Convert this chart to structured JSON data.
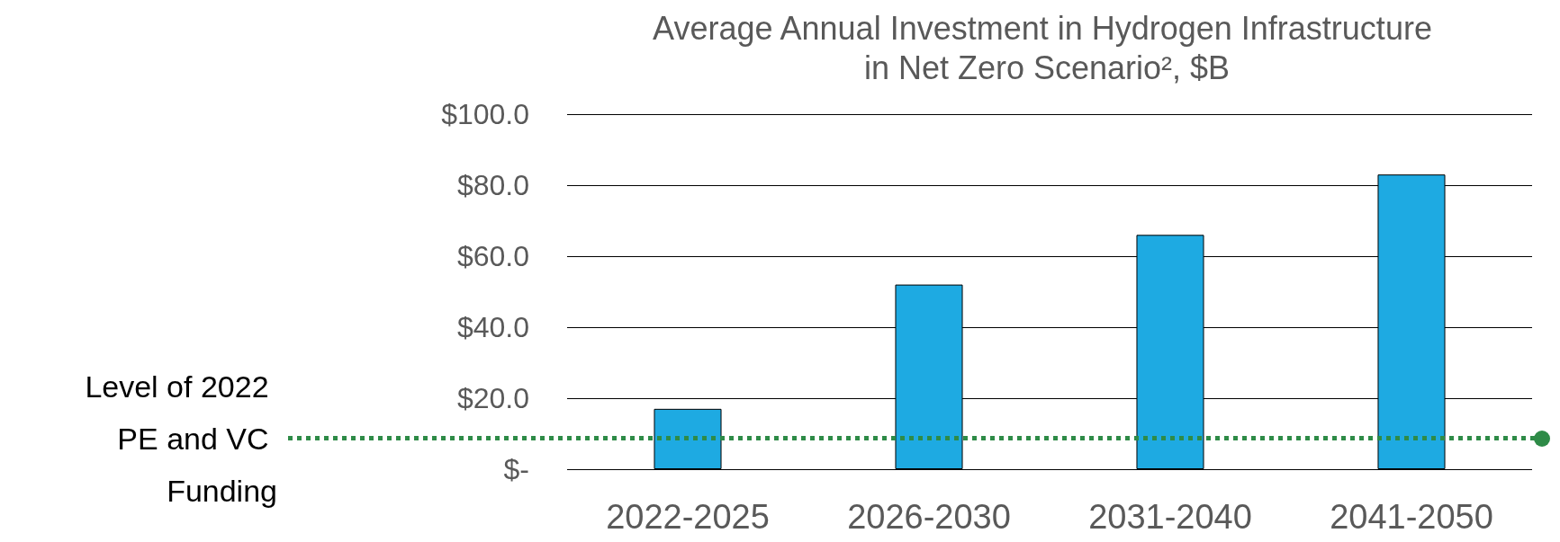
{
  "chart_data": {
    "type": "bar",
    "title": "Average Annual Investment in Hydrogen Infrastructure in Net Zero Scenario², $B",
    "categories": [
      "2022-2025",
      "2026-2030",
      "2031-2040",
      "2041-2050"
    ],
    "values": [
      17,
      52,
      66,
      83
    ],
    "color": "#1eaae2",
    "ylim": [
      0,
      100
    ],
    "yticks": [
      {
        "value": 0,
        "label": "$-"
      },
      {
        "value": 20,
        "label": "$20.0"
      },
      {
        "value": 40,
        "label": "$40.0"
      },
      {
        "value": 60,
        "label": "$60.0"
      },
      {
        "value": 80,
        "label": "$80.0"
      },
      {
        "value": 100,
        "label": "$100.0"
      }
    ],
    "grid": "y",
    "ref_lines": [
      {
        "axis": "y",
        "value": 8.7,
        "label": "Level of 2022 PE and VC Funding",
        "color": "#2e8b47",
        "line_style": "dotted"
      }
    ]
  }
}
